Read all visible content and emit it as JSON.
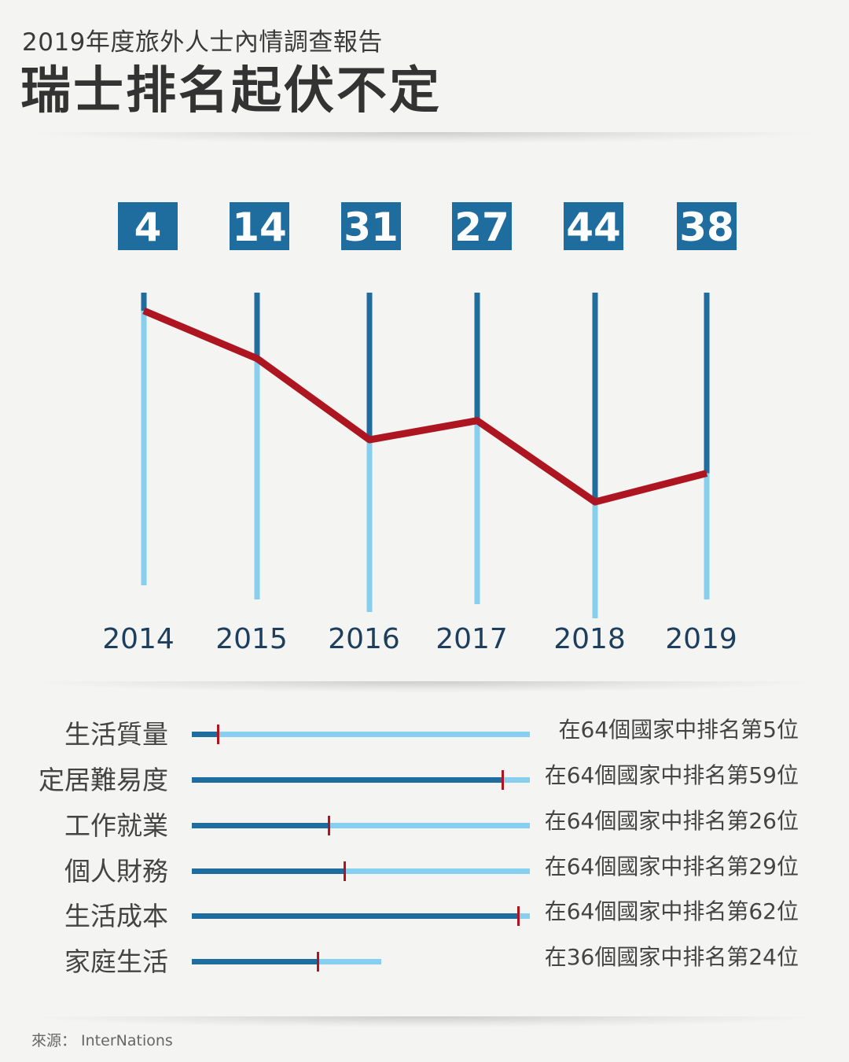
{
  "header": {
    "subtitle": "2019年度旅外人士內情調查報告",
    "title": "瑞士排名起伏不定"
  },
  "colors": {
    "dark_blue": "#1f6c9f",
    "light_blue": "#86cfee",
    "red_line": "#ad1520",
    "marker_red": "#b1141e"
  },
  "chart_data": [
    {
      "type": "line",
      "title": "瑞士排名起伏不定",
      "categories": [
        "2014",
        "2015",
        "2016",
        "2017",
        "2018",
        "2019"
      ],
      "values": [
        4,
        14,
        31,
        27,
        44,
        38
      ],
      "y_inverted": true
    },
    {
      "type": "bar",
      "orientation": "horizontal",
      "categories": [
        "生活質量",
        "定居難易度",
        "工作就業",
        "個人財務",
        "生活成本",
        "家庭生活"
      ],
      "values": [
        5,
        59,
        26,
        29,
        62,
        24
      ],
      "totals": [
        64,
        64,
        64,
        64,
        64,
        36
      ],
      "descriptions": [
        "在64個國家中排名第5位",
        "在64個國家中排名第59位",
        "在64個國家中排名第26位",
        "在64個國家中排名第29位",
        "在64個國家中排名第62位",
        "在36個國家中排名第24位"
      ]
    }
  ],
  "footer": {
    "source": "來源： InterNations"
  }
}
